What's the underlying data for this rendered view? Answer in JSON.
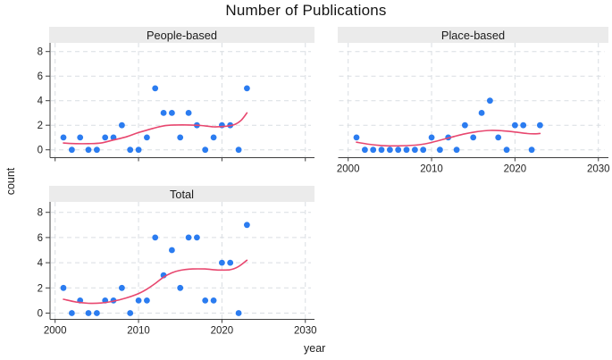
{
  "title": "Number of Publications",
  "axis_titles": {
    "y": "count",
    "x": "year"
  },
  "panels": [
    {
      "title": "People-based"
    },
    {
      "title": "Place-based"
    },
    {
      "title": "Total"
    }
  ],
  "axes": {
    "x_ticks": [
      2000,
      2010,
      2020,
      2030
    ],
    "y_ticks": [
      0,
      2,
      4,
      6,
      8
    ]
  },
  "colors": {
    "point": "#2b7cf0",
    "trend": "#e8476f",
    "grid": "#d9dde2",
    "axis": "#3d3d3d",
    "strip_bg": "#ebebeb",
    "text": "#232323"
  },
  "chart_data": {
    "type": "scatter",
    "title": "Number of Publications",
    "xlabel": "year",
    "ylabel": "count",
    "xlim": [
      2000,
      2030
    ],
    "ylim": [
      0,
      8
    ],
    "grid": "dashed",
    "legend": "none",
    "layout": "three facets: People-based (top-left), Place-based (top-right), Total (bottom-left)",
    "x": [
      2001,
      2002,
      2003,
      2004,
      2005,
      2006,
      2007,
      2008,
      2009,
      2010,
      2011,
      2012,
      2013,
      2014,
      2015,
      2016,
      2017,
      2018,
      2019,
      2020,
      2021,
      2022,
      2023
    ],
    "series": [
      {
        "name": "People-based",
        "values": [
          1,
          0,
          1,
          0,
          0,
          1,
          1,
          2,
          0,
          0,
          1,
          5,
          3,
          3,
          1,
          3,
          2,
          0,
          1,
          2,
          2,
          0,
          5
        ]
      },
      {
        "name": "Place-based",
        "values": [
          1,
          0,
          0,
          0,
          0,
          0,
          0,
          0,
          0,
          1,
          0,
          1,
          0,
          2,
          1,
          3,
          4,
          1,
          0,
          2,
          2,
          0,
          2
        ]
      },
      {
        "name": "Total",
        "values": [
          2,
          0,
          1,
          0,
          0,
          1,
          1,
          2,
          0,
          1,
          1,
          6,
          3,
          5,
          2,
          6,
          6,
          1,
          1,
          4,
          4,
          0,
          7
        ]
      }
    ],
    "trend_lines": [
      {
        "name": "People-based",
        "points": [
          [
            2001,
            0.55
          ],
          [
            2002.5,
            0.5
          ],
          [
            2004,
            0.5
          ],
          [
            2005.5,
            0.55
          ],
          [
            2007,
            0.8
          ],
          [
            2008.5,
            1.05
          ],
          [
            2010,
            1.4
          ],
          [
            2011.5,
            1.7
          ],
          [
            2013,
            1.95
          ],
          [
            2014.5,
            2.02
          ],
          [
            2016,
            2.02
          ],
          [
            2017.5,
            1.98
          ],
          [
            2019,
            1.87
          ],
          [
            2020.5,
            1.92
          ],
          [
            2021.5,
            2.05
          ],
          [
            2022.3,
            2.4
          ],
          [
            2023,
            3.0
          ]
        ]
      },
      {
        "name": "Place-based",
        "points": [
          [
            2001,
            0.62
          ],
          [
            2002.5,
            0.45
          ],
          [
            2004,
            0.35
          ],
          [
            2006,
            0.32
          ],
          [
            2008,
            0.38
          ],
          [
            2009.5,
            0.52
          ],
          [
            2011,
            0.78
          ],
          [
            2012.5,
            1.05
          ],
          [
            2014,
            1.3
          ],
          [
            2015.5,
            1.48
          ],
          [
            2017,
            1.58
          ],
          [
            2018.5,
            1.55
          ],
          [
            2020,
            1.45
          ],
          [
            2021.5,
            1.32
          ],
          [
            2022.5,
            1.3
          ],
          [
            2023,
            1.33
          ]
        ]
      },
      {
        "name": "Total",
        "points": [
          [
            2001,
            1.1
          ],
          [
            2002.5,
            0.88
          ],
          [
            2004,
            0.78
          ],
          [
            2005.5,
            0.8
          ],
          [
            2007,
            0.95
          ],
          [
            2008.5,
            1.2
          ],
          [
            2010,
            1.55
          ],
          [
            2011,
            1.9
          ],
          [
            2012,
            2.35
          ],
          [
            2013,
            2.85
          ],
          [
            2014,
            3.2
          ],
          [
            2015,
            3.4
          ],
          [
            2016.5,
            3.5
          ],
          [
            2018,
            3.5
          ],
          [
            2019.5,
            3.42
          ],
          [
            2021,
            3.45
          ],
          [
            2022,
            3.7
          ],
          [
            2023,
            4.2
          ]
        ]
      }
    ]
  }
}
